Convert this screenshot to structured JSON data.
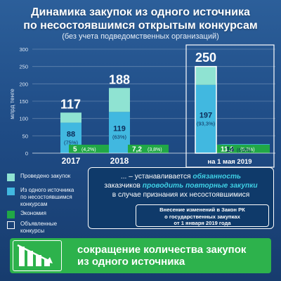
{
  "header": {
    "title_line1": "Динамика закупок из одного источника",
    "title_line2": "по несостоявшимся открытым конкурсам",
    "subtitle": "(без учета подведомственных организаций)"
  },
  "colors": {
    "held": "#8fe3d2",
    "single_source": "#41b8e0",
    "savings": "#21a846",
    "announced": "#ffffff",
    "highlight": "#3fd0e5",
    "banner": "#2db24c"
  },
  "chart_data": {
    "type": "bar",
    "ylabel": "млрд тенге",
    "ylim": [
      0,
      300
    ],
    "yticks": [
      "0",
      "50",
      "100",
      "150",
      "200",
      "250",
      "300"
    ],
    "categories": [
      "2017",
      "2018",
      "на 1 мая 2019"
    ],
    "series": [
      {
        "name": "Проведено закупок",
        "key": "held",
        "values": [
          29,
          69,
          53
        ]
      },
      {
        "name": "Из одного источника по несостоявшимся конкурсам",
        "key": "single_source",
        "values": [
          88,
          119,
          197
        ]
      },
      {
        "name": "Экономия",
        "key": "savings",
        "values": [
          5,
          7.2,
          11.2
        ]
      },
      {
        "name": "Объявленные конкурсы",
        "key": "announced",
        "values": [
          null,
          null,
          250
        ]
      }
    ],
    "totals": [
      117,
      188,
      250
    ],
    "single_source_labels": [
      "88",
      "119",
      "197"
    ],
    "single_source_pct": [
      "(75%)",
      "(63%)",
      "(93,3%)"
    ],
    "savings_labels": [
      "5",
      "7,2",
      "11,2"
    ],
    "savings_pct": [
      "(4,2%)",
      "(3,8%)",
      "(5,3%)"
    ],
    "may2019_extra": {
      "single_source_value": 14,
      "single_source_label": "14",
      "single_source_pct": "(6,6%)"
    },
    "grid": true,
    "legend_position": "bottom-left"
  },
  "legend": {
    "items": [
      {
        "key": "held",
        "label": "Проведено закупок"
      },
      {
        "key": "single_source",
        "label": "Из одного источника по несостоявшимся конкурсам"
      },
      {
        "key": "savings",
        "label": "Экономия"
      },
      {
        "key": "announced",
        "label": "Объявленные конкурсы"
      }
    ]
  },
  "info": {
    "line1_prefix": "... – устанавливается ",
    "line1_highlight": "обязанность",
    "line2_prefix": "заказчиков ",
    "line2_highlight": "проводить повторные закупки",
    "line3": "в случае признания их несостоявшимися"
  },
  "law_note": {
    "line1": "Внесение изменений в Закон РК",
    "line2": "о государственных закупках",
    "line3": "от 1 января 2019 года"
  },
  "banner": {
    "line1": "сокращение количества закупок",
    "line2": "из одного источника",
    "icon": "declining-chart-icon"
  }
}
